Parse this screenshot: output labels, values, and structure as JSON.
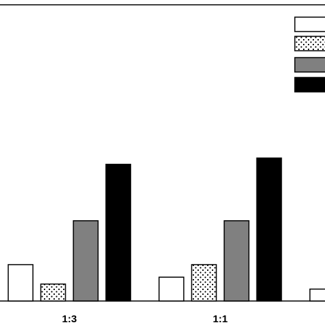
{
  "chart_data": {
    "type": "bar",
    "categories": [
      "1:3",
      "1:1",
      ""
    ],
    "series": [
      {
        "values": [
          58,
          38,
          19
        ],
        "fill": "#ffffff",
        "pattern": "none"
      },
      {
        "values": [
          27,
          58,
          null
        ],
        "fill": "#ffffff",
        "pattern": "dots"
      },
      {
        "values": [
          128,
          128,
          null
        ],
        "fill": "#808080",
        "pattern": "none"
      },
      {
        "values": [
          218,
          228,
          null
        ],
        "fill": "#000000",
        "pattern": "none"
      }
    ],
    "ylim": [
      0,
      480
    ],
    "grid": false,
    "legend": "top-right"
  }
}
